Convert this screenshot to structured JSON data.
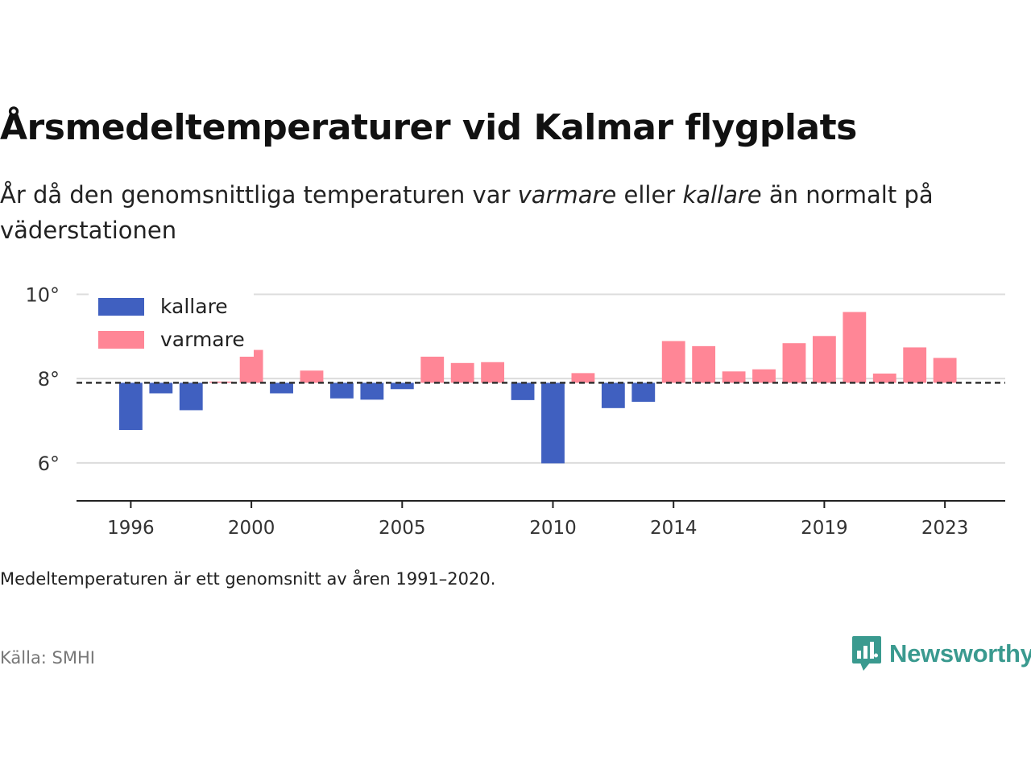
{
  "title": "Årsmedeltemperaturer vid Kalmar flygplats",
  "subtitle": {
    "part1": "År då den genomsnittliga temperaturen var ",
    "warmer": "varmare",
    "part2": " eller ",
    "colder": "kallare",
    "part3": " än normalt på väderstationen"
  },
  "note": "Medeltemperaturen är ett genomsnitt av åren 1991–2020.",
  "source": "Källa: SMHI",
  "brand": {
    "name": "Newsworthy",
    "icon": "newsworthy-logo-icon"
  },
  "colors": {
    "colder": "#4060c0",
    "warmer": "#ff8696",
    "brand": "#3a9a8f"
  },
  "chart_data": {
    "type": "bar",
    "title": "Årsmedeltemperaturer vid Kalmar flygplats",
    "baseline": 7.9,
    "ylim": [
      5.1,
      10.2
    ],
    "yticks": [
      6,
      8,
      10
    ],
    "ytick_labels": [
      "6°",
      "8°",
      "10°"
    ],
    "xticks": [
      1996,
      2000,
      2005,
      2010,
      2014,
      2019,
      2023
    ],
    "xlim": [
      1994.2,
      2025
    ],
    "grid": true,
    "legend_position": "top-left",
    "legend": [
      {
        "key": "colder",
        "label": "kallare"
      },
      {
        "key": "warmer",
        "label": "varmare"
      }
    ],
    "x": [
      1996,
      1997,
      1998,
      1999,
      2000,
      2001,
      2002,
      2003,
      2004,
      2005,
      2006,
      2007,
      2008,
      2009,
      2010,
      2011,
      2012,
      2013,
      2014,
      2015,
      2016,
      2017,
      2018,
      2019,
      2020,
      2021,
      2022,
      2023
    ],
    "values": [
      6.78,
      7.65,
      7.25,
      7.93,
      8.68,
      7.65,
      8.19,
      7.53,
      7.5,
      7.75,
      8.52,
      8.37,
      8.39,
      7.49,
      5.99,
      8.13,
      7.3,
      7.45,
      8.89,
      8.77,
      8.17,
      8.22,
      8.84,
      9.01,
      9.58,
      8.12,
      8.74,
      8.49
    ]
  }
}
